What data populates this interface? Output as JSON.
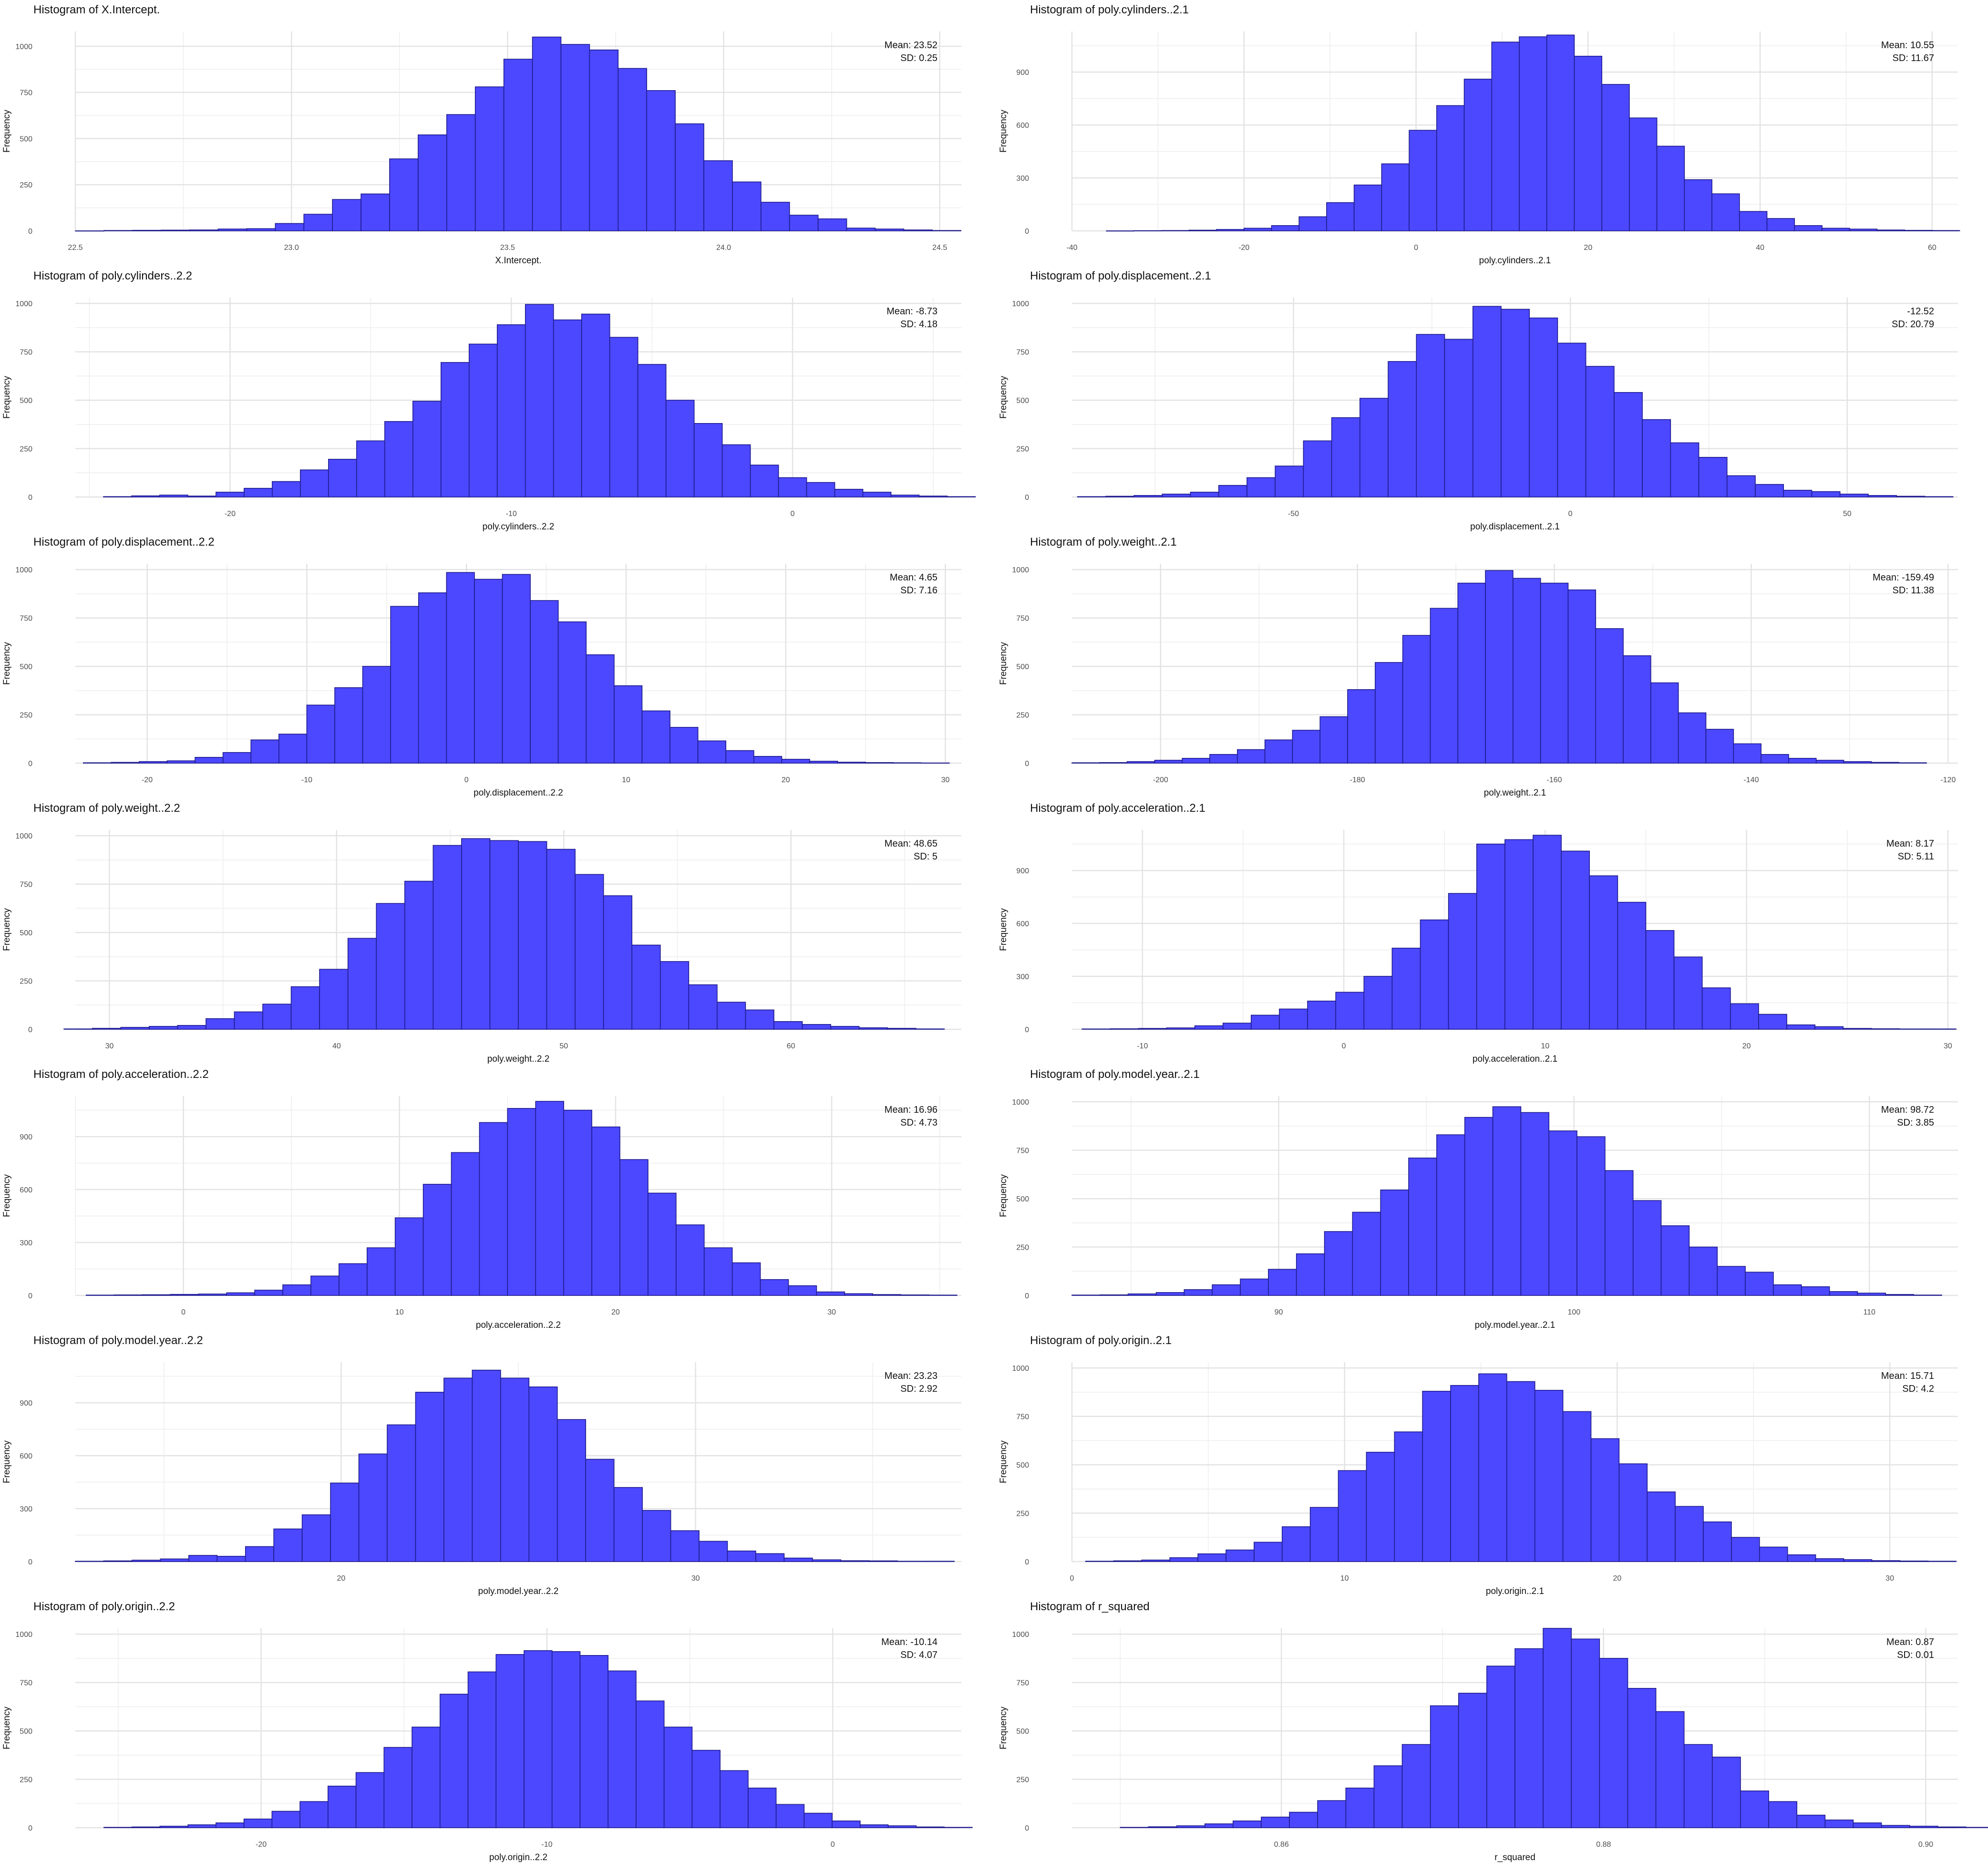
{
  "colors": {
    "bar_fill": "#4b48ff",
    "bar_stroke": "#1e1a8c",
    "grid_major": "#e3e3e3",
    "grid_minor": "#f1f1f1",
    "text": "#111111",
    "tick_text": "#4d4d4d",
    "background": "#ffffff"
  },
  "chart_data": [
    {
      "type": "bar",
      "title": "Histogram of X.Intercept.",
      "xlabel": "X.Intercept.",
      "ylabel": "Frequency",
      "annotation": {
        "mean": "Mean: 23.52",
        "sd": "SD: 0.25"
      },
      "xlim": [
        22.5,
        24.55
      ],
      "ylim": [
        0,
        1080
      ],
      "xticks": [
        22.5,
        23.0,
        23.5,
        24.0,
        24.5
      ],
      "xtick_labels": [
        "22.5",
        "23.0",
        "23.5",
        "24.0",
        "24.5"
      ],
      "yticks": [
        0,
        250,
        500,
        750,
        1000
      ],
      "ytick_labels": [
        "0",
        "250",
        "500",
        "750",
        "1000"
      ],
      "bin_start": 22.5,
      "bin_width": 0.0661,
      "counts": [
        0,
        2,
        3,
        4,
        5,
        10,
        12,
        40,
        90,
        170,
        200,
        390,
        520,
        630,
        780,
        930,
        1050,
        1010,
        980,
        880,
        760,
        580,
        380,
        265,
        155,
        85,
        65,
        15,
        10,
        5,
        2
      ]
    },
    {
      "type": "bar",
      "title": "Histogram of poly.cylinders..2.1",
      "xlabel": "poly.cylinders..2.1",
      "ylabel": "Frequency",
      "annotation": {
        "mean": "Mean: 10.55",
        "sd": "SD: 11.67"
      },
      "xlim": [
        -40,
        63
      ],
      "ylim": [
        0,
        1130
      ],
      "xticks": [
        -40,
        -20,
        0,
        20,
        40,
        60
      ],
      "xtick_labels": [
        "-40",
        "-20",
        "0",
        "20",
        "40",
        "60"
      ],
      "yticks": [
        0,
        300,
        600,
        900
      ],
      "ytick_labels": [
        "0",
        "300",
        "600",
        "900"
      ],
      "bin_start": -36,
      "bin_width": 3.2,
      "counts": [
        0,
        1,
        2,
        4,
        8,
        15,
        30,
        80,
        160,
        260,
        380,
        570,
        710,
        860,
        1070,
        1100,
        1110,
        990,
        830,
        640,
        480,
        290,
        210,
        110,
        70,
        30,
        15,
        10,
        5,
        3,
        2
      ]
    },
    {
      "type": "bar",
      "title": "Histogram of poly.cylinders..2.2",
      "xlabel": "poly.cylinders..2.2",
      "ylabel": "Frequency",
      "annotation": {
        "mean": "Mean: -8.73",
        "sd": "SD: 4.18"
      },
      "xlim": [
        -25.5,
        6
      ],
      "ylim": [
        0,
        1030
      ],
      "xticks": [
        -20,
        -10,
        0
      ],
      "xtick_labels": [
        "-20",
        "-10",
        "0"
      ],
      "yticks": [
        0,
        250,
        500,
        750,
        1000
      ],
      "ytick_labels": [
        "0",
        "250",
        "500",
        "750",
        "1000"
      ],
      "bin_start": -24.5,
      "bin_width": 1.0,
      "counts": [
        2,
        6,
        10,
        5,
        25,
        45,
        80,
        140,
        195,
        290,
        390,
        495,
        695,
        790,
        890,
        995,
        915,
        945,
        825,
        685,
        500,
        380,
        270,
        165,
        100,
        75,
        40,
        25,
        10,
        5,
        2
      ]
    },
    {
      "type": "bar",
      "title": "Histogram of poly.displacement..2.1",
      "xlabel": "poly.displacement..2.1",
      "ylabel": "Frequency",
      "annotation": {
        "mean": "-12.52",
        "sd": "SD: 20.79"
      },
      "xlim": [
        -90,
        70
      ],
      "ylim": [
        0,
        1030
      ],
      "xticks": [
        -50,
        0,
        50
      ],
      "xtick_labels": [
        "-50",
        "0",
        "50"
      ],
      "yticks": [
        0,
        250,
        500,
        750,
        1000
      ],
      "ytick_labels": [
        "0",
        "250",
        "500",
        "750",
        "1000"
      ],
      "bin_start": -89,
      "bin_width": 5.1,
      "counts": [
        2,
        4,
        8,
        15,
        25,
        60,
        100,
        160,
        290,
        410,
        510,
        700,
        840,
        815,
        985,
        970,
        925,
        795,
        675,
        540,
        400,
        280,
        205,
        110,
        65,
        35,
        28,
        15,
        8,
        4,
        2
      ]
    },
    {
      "type": "bar",
      "title": "Histogram of poly.displacement..2.2",
      "xlabel": "poly.displacement..2.2",
      "ylabel": "Frequency",
      "annotation": {
        "mean": "Mean: 4.65",
        "sd": "SD: 7.16"
      },
      "xlim": [
        -24.5,
        31
      ],
      "ylim": [
        0,
        1030
      ],
      "xticks": [
        -20,
        -10,
        0,
        10,
        20,
        30
      ],
      "xtick_labels": [
        "-20",
        "-10",
        "0",
        "10",
        "20",
        "30"
      ],
      "bin_start": -24,
      "bin_width": 1.75,
      "yticks": [
        0,
        250,
        500,
        750,
        1000
      ],
      "ytick_labels": [
        "0",
        "250",
        "500",
        "750",
        "1000"
      ],
      "counts": [
        2,
        4,
        8,
        12,
        30,
        55,
        120,
        150,
        300,
        390,
        500,
        810,
        880,
        985,
        950,
        975,
        840,
        730,
        560,
        400,
        270,
        185,
        115,
        65,
        35,
        20,
        10,
        5,
        3,
        2,
        1
      ]
    },
    {
      "type": "bar",
      "title": "Histogram of poly.weight..2.1",
      "xlabel": "poly.weight..2.1",
      "ylabel": "Frequency",
      "annotation": {
        "mean": "Mean: -159.49",
        "sd": "SD: 11.38"
      },
      "xlim": [
        -209,
        -119
      ],
      "ylim": [
        0,
        1030
      ],
      "xticks": [
        -200,
        -180,
        -160,
        -140,
        -120
      ],
      "xtick_labels": [
        "-200",
        "-180",
        "-160",
        "-140",
        "-120"
      ],
      "yticks": [
        0,
        250,
        500,
        750,
        1000
      ],
      "ytick_labels": [
        "0",
        "250",
        "500",
        "750",
        "1000"
      ],
      "bin_start": -209,
      "bin_width": 2.8,
      "counts": [
        2,
        3,
        8,
        15,
        25,
        45,
        70,
        120,
        170,
        240,
        380,
        520,
        660,
        800,
        930,
        995,
        955,
        930,
        895,
        695,
        555,
        415,
        260,
        175,
        100,
        45,
        25,
        15,
        8,
        4,
        2
      ]
    },
    {
      "type": "bar",
      "title": "Histogram of poly.weight..2.2",
      "xlabel": "poly.weight..2.2",
      "ylabel": "Frequency",
      "annotation": {
        "mean": "Mean: 48.65",
        "sd": "SD: 5"
      },
      "xlim": [
        28.5,
        67.5
      ],
      "ylim": [
        0,
        1030
      ],
      "xticks": [
        30,
        40,
        50,
        60
      ],
      "xtick_labels": [
        "30",
        "40",
        "50",
        "60"
      ],
      "yticks": [
        0,
        250,
        500,
        750,
        1000
      ],
      "ytick_labels": [
        "0",
        "250",
        "500",
        "750",
        "1000"
      ],
      "bin_start": 28.0,
      "bin_width": 1.25,
      "counts": [
        2,
        5,
        10,
        15,
        20,
        55,
        90,
        130,
        220,
        310,
        470,
        650,
        765,
        950,
        985,
        975,
        970,
        930,
        800,
        690,
        435,
        350,
        230,
        140,
        100,
        40,
        25,
        15,
        8,
        5,
        2
      ]
    },
    {
      "type": "bar",
      "title": "Histogram of poly.acceleration..2.1",
      "xlabel": "poly.acceleration..2.1",
      "ylabel": "Frequency",
      "annotation": {
        "mean": "Mean: 8.17",
        "sd": "SD: 5.11"
      },
      "xlim": [
        -13.5,
        30.5
      ],
      "ylim": [
        0,
        1130
      ],
      "xticks": [
        -10,
        0,
        10,
        20,
        30
      ],
      "xtick_labels": [
        "-10",
        "0",
        "10",
        "20",
        "30"
      ],
      "yticks": [
        0,
        300,
        600,
        900
      ],
      "ytick_labels": [
        "0",
        "300",
        "600",
        "900"
      ],
      "bin_start": -13,
      "bin_width": 1.4,
      "counts": [
        2,
        3,
        5,
        8,
        20,
        35,
        80,
        115,
        160,
        210,
        300,
        460,
        620,
        770,
        1050,
        1075,
        1100,
        1010,
        870,
        720,
        560,
        410,
        235,
        145,
        85,
        25,
        15,
        5,
        3,
        2,
        2
      ]
    },
    {
      "type": "bar",
      "title": "Histogram of poly.acceleration..2.2",
      "xlabel": "poly.acceleration..2.2",
      "ylabel": "Frequency",
      "annotation": {
        "mean": "Mean: 16.96",
        "sd": "SD: 4.73"
      },
      "xlim": [
        -5,
        36
      ],
      "ylim": [
        0,
        1130
      ],
      "xticks": [
        0,
        10,
        20,
        30
      ],
      "xtick_labels": [
        "0",
        "10",
        "20",
        "30"
      ],
      "yticks": [
        0,
        300,
        600,
        900
      ],
      "ytick_labels": [
        "0",
        "300",
        "600",
        "900"
      ],
      "bin_start": -4.5,
      "bin_width": 1.3,
      "counts": [
        2,
        3,
        4,
        6,
        8,
        15,
        30,
        60,
        110,
        180,
        270,
        440,
        630,
        810,
        980,
        1060,
        1100,
        1050,
        955,
        770,
        580,
        400,
        270,
        185,
        90,
        55,
        20,
        10,
        5,
        3,
        2
      ]
    },
    {
      "type": "bar",
      "title": "Histogram of poly.model.year..2.1",
      "xlabel": "poly.model.year..2.1",
      "ylabel": "Frequency",
      "annotation": {
        "mean": "Mean: 98.72",
        "sd": "SD: 3.85"
      },
      "xlim": [
        83,
        113
      ],
      "ylim": [
        0,
        1030
      ],
      "xticks": [
        90,
        100,
        110
      ],
      "xtick_labels": [
        "90",
        "100",
        "110"
      ],
      "yticks": [
        0,
        250,
        500,
        750,
        1000
      ],
      "ytick_labels": [
        "0",
        "250",
        "500",
        "750",
        "1000"
      ],
      "bin_start": 83,
      "bin_width": 0.95,
      "counts": [
        2,
        3,
        8,
        15,
        30,
        55,
        85,
        135,
        215,
        330,
        430,
        545,
        710,
        830,
        920,
        975,
        945,
        850,
        820,
        645,
        490,
        360,
        250,
        150,
        120,
        55,
        45,
        20,
        12,
        5,
        2
      ]
    },
    {
      "type": "bar",
      "title": "Histogram of poly.model.year..2.2",
      "xlabel": "poly.model.year..2.2",
      "ylabel": "Frequency",
      "annotation": {
        "mean": "Mean: 23.23",
        "sd": "SD: 2.92"
      },
      "xlim": [
        12.5,
        37.5
      ],
      "ylim": [
        0,
        1130
      ],
      "xticks": [
        20,
        30
      ],
      "xtick_labels": [
        "20",
        "30"
      ],
      "yticks": [
        0,
        300,
        600,
        900
      ],
      "ytick_labels": [
        "0",
        "300",
        "600",
        "900"
      ],
      "bin_start": 12.5,
      "bin_width": 0.8,
      "counts": [
        2,
        4,
        8,
        15,
        35,
        30,
        85,
        185,
        265,
        445,
        610,
        775,
        960,
        1040,
        1085,
        1040,
        990,
        805,
        580,
        420,
        290,
        175,
        115,
        60,
        45,
        20,
        10,
        5,
        4,
        2,
        2
      ]
    },
    {
      "type": "bar",
      "title": "Histogram of poly.origin..2.1",
      "xlabel": "poly.origin..2.1",
      "ylabel": "Frequency",
      "annotation": {
        "mean": "Mean: 15.71",
        "sd": "SD: 4.2"
      },
      "xlim": [
        0,
        32.5
      ],
      "ylim": [
        0,
        1030
      ],
      "xticks": [
        0,
        10,
        20,
        30
      ],
      "xtick_labels": [
        "0",
        "10",
        "20",
        "30"
      ],
      "yticks": [
        0,
        250,
        500,
        750,
        1000
      ],
      "ytick_labels": [
        "0",
        "250",
        "500",
        "750",
        "1000"
      ],
      "bin_start": 0.5,
      "bin_width": 1.03,
      "counts": [
        2,
        4,
        8,
        20,
        40,
        60,
        100,
        180,
        280,
        470,
        565,
        670,
        880,
        910,
        970,
        930,
        885,
        775,
        635,
        505,
        360,
        285,
        205,
        125,
        75,
        35,
        15,
        10,
        5,
        3,
        2
      ]
    },
    {
      "type": "bar",
      "title": "Histogram of poly.origin..2.2",
      "xlabel": "poly.origin..2.2",
      "ylabel": "Frequency",
      "annotation": {
        "mean": "Mean: -10.14",
        "sd": "SD: 4.07"
      },
      "xlim": [
        -26.5,
        4.5
      ],
      "ylim": [
        0,
        1030
      ],
      "xticks": [
        -20,
        -10,
        0
      ],
      "xtick_labels": [
        "-20",
        "-10",
        "0"
      ],
      "yticks": [
        0,
        250,
        500,
        750,
        1000
      ],
      "ytick_labels": [
        "0",
        "250",
        "500",
        "750",
        "1000"
      ],
      "bin_start": -25.5,
      "bin_width": 0.98,
      "counts": [
        2,
        4,
        8,
        15,
        25,
        45,
        85,
        135,
        215,
        285,
        415,
        520,
        690,
        805,
        895,
        915,
        910,
        890,
        810,
        655,
        520,
        400,
        295,
        205,
        120,
        75,
        35,
        15,
        10,
        4,
        2
      ]
    },
    {
      "type": "bar",
      "title": "Histogram of r_squared",
      "xlabel": "r_squared",
      "ylabel": "Frequency",
      "annotation": {
        "mean": "Mean: 0.87",
        "sd": "SD: 0.01"
      },
      "xlim": [
        0.847,
        0.902
      ],
      "ylim": [
        0,
        1030
      ],
      "xticks": [
        0.86,
        0.88,
        0.9
      ],
      "xtick_labels": [
        "0.86",
        "0.88",
        "0.90"
      ],
      "yticks": [
        0,
        250,
        500,
        750,
        1000
      ],
      "ytick_labels": [
        "0",
        "250",
        "500",
        "750",
        "1000"
      ],
      "bin_start": 0.85,
      "bin_width": 0.00175,
      "counts": [
        2,
        5,
        10,
        20,
        35,
        55,
        80,
        140,
        205,
        320,
        430,
        630,
        695,
        835,
        925,
        1030,
        975,
        875,
        720,
        600,
        430,
        365,
        190,
        135,
        65,
        40,
        25,
        12,
        8,
        4,
        2
      ]
    }
  ]
}
